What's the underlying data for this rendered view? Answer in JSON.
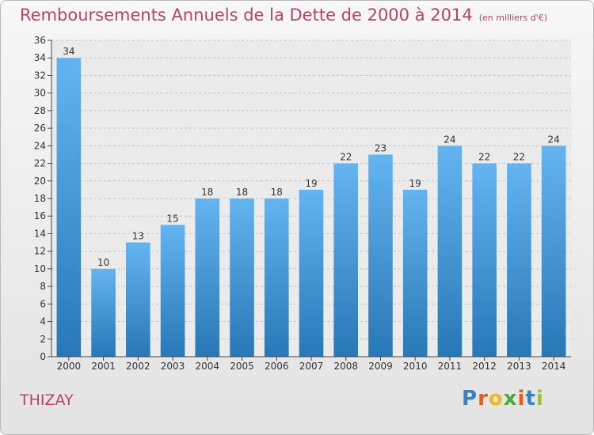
{
  "header": {
    "title": "Remboursements Annuels de la Dette de 2000 à 2014",
    "unit": "(en milliers d'€)"
  },
  "footer": {
    "commune": "THIZAY",
    "logo_letters": [
      "P",
      "r",
      "o",
      "x",
      "i",
      "t",
      "i"
    ],
    "logo_colors": [
      "#3a7fc4",
      "#e8591a",
      "#f2b51b",
      "#4da93a",
      "#e8591a",
      "#3a7fc4",
      "#9bc236"
    ]
  },
  "colors": {
    "bar_top": "#63b4f0",
    "bar_bottom": "#2778b6",
    "title": "#b5426c"
  },
  "chart_data": {
    "type": "bar",
    "categories": [
      "2000",
      "2001",
      "2002",
      "2003",
      "2004",
      "2005",
      "2006",
      "2007",
      "2008",
      "2009",
      "2010",
      "2011",
      "2012",
      "2013",
      "2014"
    ],
    "values": [
      34,
      10,
      13,
      15,
      18,
      18,
      18,
      19,
      22,
      23,
      19,
      24,
      22,
      22,
      24
    ],
    "ylim": [
      0,
      36
    ],
    "yticks": [
      0,
      2,
      4,
      6,
      8,
      10,
      12,
      14,
      16,
      18,
      20,
      22,
      24,
      26,
      28,
      30,
      32,
      34,
      36
    ],
    "grid": true
  }
}
